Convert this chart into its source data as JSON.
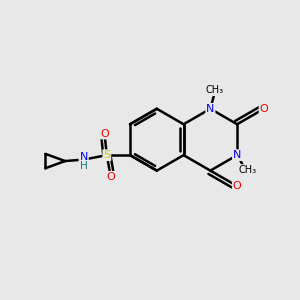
{
  "background_color": "#e8e8e8",
  "bond_color": "#000000",
  "N_color": "#0000ee",
  "O_color": "#ee0000",
  "S_color": "#cccc00",
  "H_color": "#008080",
  "figsize": [
    3.0,
    3.0
  ],
  "dpi": 100,
  "xlim": [
    0,
    10
  ],
  "ylim": [
    0,
    10
  ]
}
